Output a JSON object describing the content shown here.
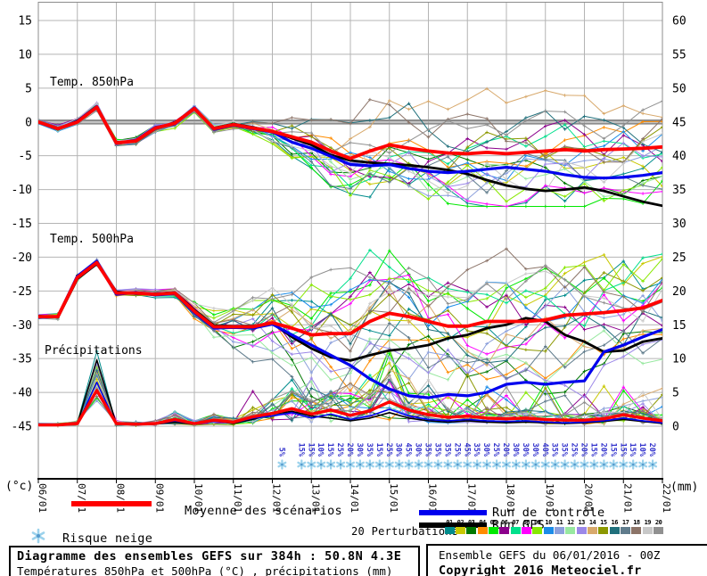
{
  "legend": {
    "mean_label": "Moyenne des scénarios",
    "control_label": "Run de contrôle",
    "gfs_label": "Run GFS",
    "snow_label": "Risque neige",
    "perturbations_label": "20 Perturbations",
    "perturbation_ids": [
      "01",
      "02",
      "03",
      "04",
      "05",
      "06",
      "07",
      "08",
      "09",
      "10",
      "11",
      "12",
      "13",
      "14",
      "15",
      "16",
      "17",
      "18",
      "19",
      "20"
    ]
  },
  "title_box": {
    "line1": "Diagramme des ensembles GEFS sur 384h : 50.8N 4.3E",
    "line2": "Températures 850hPa et 500hPa (°C) , précipitations (mm)"
  },
  "info_box": {
    "line1": "Ensemble GEFS du 06/01/2016 - 00Z",
    "line2": "Copyright 2016 Meteociel.fr"
  },
  "colors": {
    "mean": "#FF0000",
    "control": "#0000EE",
    "gfs": "#000000",
    "grid": "#B4B4B4",
    "border": "#8C8C8C",
    "zero_line": "#8C8C8C",
    "axis": "#000000",
    "snow_text": "#3333CC",
    "snowflake": "#9CD2EC",
    "snowflake_core": "#5599CC",
    "members": [
      "#008C8C",
      "#C8C800",
      "#007800",
      "#FF8C00",
      "#00E800",
      "#8C008C",
      "#00E08C",
      "#FF00FF",
      "#88E800",
      "#1C8CE8",
      "#8CA0DC",
      "#98E8A0",
      "#9C88E8",
      "#D8A96C",
      "#8C9800",
      "#20707C",
      "#607C8C",
      "#8C7468",
      "#C8C8C8",
      "#909090"
    ]
  },
  "chart_data": {
    "type": "line",
    "title": "Diagramme des ensembles GEFS sur 384h : 50.8N 4.3E",
    "x_start": "06/01 00Z",
    "x_end": "22/01 00Z",
    "x_step_hours": 12,
    "x_labels": [
      "06/01",
      "07/01",
      "08/01",
      "09/01",
      "10/01",
      "11/01",
      "12/01",
      "13/01",
      "14/01",
      "15/01",
      "16/01",
      "17/01",
      "18/01",
      "19/01",
      "20/01",
      "21/01",
      "22/01"
    ],
    "left_axis": {
      "unit": "(°c)",
      "ticks": [
        15,
        10,
        5,
        0,
        -5,
        -10,
        -15,
        -20,
        -25,
        -30,
        -35,
        -40,
        -45
      ]
    },
    "right_axis": {
      "unit": "(mm)",
      "ticks": [
        60,
        55,
        50,
        45,
        40,
        35,
        30,
        25,
        20,
        15,
        10,
        5,
        0
      ]
    },
    "grid": true,
    "panels": [
      {
        "name": "Temp. 850hPa",
        "unit": "°C",
        "series": [
          {
            "name": "Moyenne des scénarios",
            "values": [
              0,
              -1.0,
              0.0,
              2.2,
              -3.1,
              -2.8,
              -0.9,
              -0.2,
              2.0,
              -1.0,
              -0.4,
              -0.9,
              -1.4,
              -2.2,
              -3.0,
              -4.3,
              -5.4,
              -4.3,
              -3.4,
              -3.9,
              -4.3,
              -4.6,
              -4.7,
              -4.5,
              -4.7,
              -4.5,
              -4.3,
              -4.1,
              -4.3,
              -4.1,
              -4.0,
              -3.9,
              -3.7
            ]
          },
          {
            "name": "Run de contrôle",
            "values": [
              0,
              -1.0,
              0.1,
              2.3,
              -3.2,
              -2.7,
              -0.8,
              -0.3,
              2.1,
              -1.1,
              -0.5,
              -1.0,
              -1.5,
              -3.0,
              -3.9,
              -5.1,
              -6.3,
              -6.5,
              -6.3,
              -6.9,
              -7.3,
              -7.5,
              -7.3,
              -7.0,
              -6.7,
              -7.0,
              -7.3,
              -7.8,
              -8.2,
              -8.3,
              -8.2,
              -7.9,
              -7.5
            ]
          },
          {
            "name": "Run GFS",
            "values": [
              0,
              -1.1,
              0.2,
              2.1,
              -3.0,
              -2.9,
              -1.0,
              -0.1,
              1.9,
              -0.9,
              -0.3,
              -0.8,
              -1.4,
              -2.4,
              -3.4,
              -4.9,
              -5.7,
              -6.0,
              -6.2,
              -6.4,
              -6.7,
              -7.1,
              -7.7,
              -8.6,
              -9.4,
              -9.9,
              -10.2,
              -10.0,
              -9.7,
              -10.2,
              -11.0,
              -11.8,
              -12.4
            ]
          }
        ]
      },
      {
        "name": "Temp. 500hPa",
        "unit": "°C",
        "series": [
          {
            "name": "Moyenne des scénarios",
            "values": [
              -28.8,
              -28.8,
              -23.0,
              -20.8,
              -25.3,
              -25.3,
              -25.5,
              -25.3,
              -28.0,
              -30.3,
              -30.3,
              -30.3,
              -29.7,
              -30.5,
              -31.5,
              -31.3,
              -31.3,
              -29.5,
              -28.3,
              -28.8,
              -29.5,
              -30.2,
              -30.2,
              -29.5,
              -29.5,
              -29.5,
              -29.3,
              -28.6,
              -28.4,
              -28.2,
              -27.9,
              -27.5,
              -26.4
            ]
          },
          {
            "name": "Run de contrôle",
            "values": [
              -28.9,
              -28.8,
              -22.8,
              -20.6,
              -25.5,
              -25.2,
              -25.6,
              -25.4,
              -28.2,
              -30.5,
              -30.4,
              -30.5,
              -29.9,
              -31.5,
              -33.0,
              -34.5,
              -36.0,
              -38.0,
              -39.5,
              -40.5,
              -40.8,
              -40.3,
              -40.5,
              -40.0,
              -38.8,
              -38.5,
              -38.8,
              -38.5,
              -38.3,
              -34.0,
              -33.0,
              -31.8,
              -30.7
            ]
          },
          {
            "name": "Run GFS",
            "values": [
              -28.7,
              -28.9,
              -23.2,
              -21.0,
              -25.1,
              -25.4,
              -25.4,
              -25.2,
              -27.8,
              -30.1,
              -30.2,
              -30.2,
              -29.8,
              -31.8,
              -33.5,
              -34.8,
              -35.3,
              -34.5,
              -33.8,
              -33.5,
              -33.0,
              -32.0,
              -31.5,
              -30.5,
              -30.0,
              -29.0,
              -29.5,
              -31.5,
              -32.5,
              -34.0,
              -33.8,
              -32.5,
              -32.0
            ]
          }
        ]
      },
      {
        "name": "Précipitations",
        "unit": "mm",
        "series": [
          {
            "name": "Moyenne des scénarios",
            "values": [
              0.2,
              0.2,
              0.4,
              5.3,
              0.4,
              0.3,
              0.4,
              1.0,
              0.4,
              0.9,
              0.6,
              1.4,
              1.9,
              2.6,
              1.8,
              2.4,
              1.6,
              2.3,
              3.6,
              2.4,
              1.7,
              1.3,
              1.5,
              1.2,
              1.1,
              1.2,
              1.0,
              0.9,
              0.9,
              1.1,
              1.7,
              1.2,
              0.8
            ]
          },
          {
            "name": "Run de contrôle",
            "values": [
              0.1,
              0.1,
              0.3,
              6.5,
              0.3,
              0.2,
              0.3,
              0.8,
              0.3,
              0.7,
              0.5,
              1.2,
              1.5,
              2.0,
              1.2,
              1.8,
              1.0,
              1.5,
              2.5,
              1.5,
              1.0,
              0.8,
              1.0,
              0.8,
              0.7,
              0.8,
              0.6,
              0.5,
              0.6,
              0.8,
              1.2,
              0.8,
              0.5
            ]
          },
          {
            "name": "Run GFS",
            "values": [
              0.1,
              0.1,
              0.4,
              9.8,
              0.3,
              0.2,
              0.3,
              0.6,
              0.3,
              0.8,
              0.4,
              1.0,
              1.8,
              2.2,
              1.5,
              1.2,
              0.8,
              1.2,
              2.0,
              1.2,
              0.8,
              0.6,
              0.8,
              0.6,
              0.5,
              0.6,
              0.5,
              0.4,
              0.5,
              0.7,
              1.0,
              0.7,
              0.4
            ]
          }
        ]
      }
    ],
    "snow_risk": {
      "steps_6h": [
        25,
        27,
        28,
        29,
        30,
        31,
        32,
        33,
        34,
        35,
        36,
        37,
        38,
        39,
        40,
        41,
        42,
        43,
        44,
        45,
        46,
        47,
        48,
        49,
        50,
        51,
        52,
        53,
        54,
        55,
        56,
        57,
        58,
        59,
        60,
        61,
        62,
        63
      ],
      "labels": [
        "5%",
        "15%",
        "15%",
        "10%",
        "15%",
        "25%",
        "20%",
        "30%",
        "35%",
        "15%",
        "25%",
        "30%",
        "45%",
        "30%",
        "35%",
        "35%",
        "35%",
        "25%",
        "45%",
        "35%",
        "30%",
        "25%",
        "20%",
        "30%",
        "30%",
        "30%",
        "40%",
        "35%",
        "35%",
        "25%",
        "20%",
        "15%",
        "20%",
        "15%",
        "15%",
        "15%",
        "10%",
        "20%"
      ]
    },
    "ensemble": {
      "count": 20,
      "spread": {
        "t850": {
          "ramp_start_index": 10,
          "noise": 2.6,
          "bias_amp": 10,
          "clamp": [
            -12.5,
            13.5
          ]
        },
        "t500": {
          "ramp_start_index": 7,
          "noise": 3.4,
          "bias_amp": 12,
          "clamp": [
            -42,
            -14.5
          ]
        },
        "precip": {
          "factor_min": 0.25,
          "factor_span": 1.9,
          "extra_spike": 5.0,
          "max": 11.5
        }
      }
    }
  }
}
